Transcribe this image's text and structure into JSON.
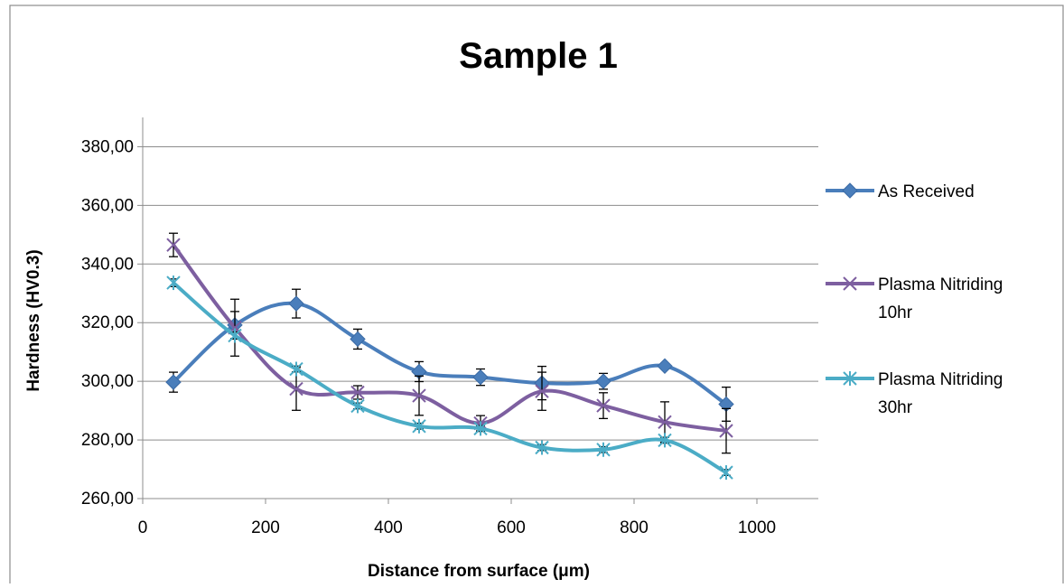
{
  "chart_data": {
    "type": "line",
    "title": "Sample 1",
    "xlabel": "Distance from surface (μm)",
    "ylabel": "Hardness (HV0.3)",
    "xlim": [
      0,
      1100
    ],
    "ylim": [
      260,
      390
    ],
    "x_ticks": [
      0,
      200,
      400,
      600,
      800,
      1000
    ],
    "x_tick_labels": [
      "0",
      "200",
      "400",
      "600",
      "800",
      "1000"
    ],
    "y_ticks": [
      260,
      280,
      300,
      320,
      340,
      360,
      380
    ],
    "y_tick_labels": [
      "260,00",
      "280,00",
      "300,00",
      "320,00",
      "340,00",
      "360,00",
      "380,00"
    ],
    "grid": "horizontal",
    "legend_position": "right",
    "x": [
      50,
      150,
      250,
      350,
      450,
      550,
      650,
      750,
      850,
      950
    ],
    "series": [
      {
        "name": "As Received",
        "legend_lines": [
          "As Received"
        ],
        "color": "#4a7ebb",
        "marker": "diamond",
        "values": [
          299.7,
          319.2,
          326.5,
          314.4,
          303.3,
          301.4,
          299.4,
          300.0,
          305.2,
          292.2
        ],
        "errors": [
          3.4,
          4.6,
          4.9,
          3.4,
          3.4,
          2.8,
          5.7,
          2.7,
          0,
          5.8
        ]
      },
      {
        "name": "Plasma Nitriding 10hr",
        "legend_lines": [
          "Plasma Nitriding",
          "10hr"
        ],
        "color": "#7d5fa0",
        "marker": "x",
        "values": [
          346.5,
          318.3,
          297.4,
          296.2,
          295.1,
          285.7,
          296.6,
          291.7,
          286.1,
          283.1
        ],
        "errors": [
          4.0,
          9.7,
          7.3,
          2.3,
          6.7,
          2.6,
          6.5,
          4.4,
          6.9,
          7.6
        ]
      },
      {
        "name": "Plasma Nitriding 30hr",
        "legend_lines": [
          "Plasma Nitriding",
          "30hr"
        ],
        "color": "#4bacc6",
        "marker": "asterisk",
        "values": [
          333.6,
          315.6,
          304.2,
          291.6,
          284.7,
          283.9,
          277.4,
          276.7,
          279.9,
          268.9
        ],
        "errors": [
          1.3,
          1.2,
          1.0,
          1.0,
          1.0,
          1.0,
          1.0,
          1.0,
          1.0,
          1.0
        ]
      }
    ]
  }
}
